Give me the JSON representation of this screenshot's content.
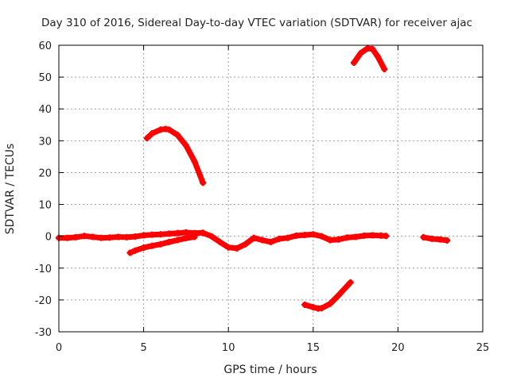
{
  "chart_data": {
    "type": "line",
    "title": "Day 310 of 2016, Sidereal Day-to-day VTEC variation (SDTVAR) for receiver ajac",
    "xlabel": "GPS time / hours",
    "ylabel": "SDTVAR / TECUs",
    "xlim": [
      0,
      25
    ],
    "ylim": [
      -30,
      60
    ],
    "xticks": [
      0,
      5,
      10,
      15,
      20,
      25
    ],
    "yticks": [
      -30,
      -20,
      -10,
      0,
      10,
      20,
      30,
      40,
      50,
      60
    ],
    "grid": true,
    "legend": "none",
    "colors": {
      "series": "#ff0000",
      "grid": "#a0a0a0",
      "axes": "#000000"
    },
    "series": [
      {
        "name": "main-trace",
        "x": [
          0,
          0.5,
          1,
          1.5,
          2,
          2.5,
          3,
          3.5,
          4,
          4.5,
          5,
          5.5,
          6,
          6.5,
          7,
          7.5,
          8,
          8.5,
          9,
          9.5,
          10,
          10.5,
          11,
          11.5,
          12,
          12.5,
          13,
          13.5,
          14,
          14.5,
          15,
          15.5,
          16,
          16.5,
          17,
          17.5,
          18,
          18.5,
          19,
          19.3
        ],
        "y": [
          -0.5,
          -0.5,
          -0.3,
          0.1,
          -0.2,
          -0.5,
          -0.4,
          -0.2,
          -0.3,
          -0.1,
          0.3,
          0.5,
          0.6,
          0.8,
          1.0,
          1.2,
          1.0,
          1.1,
          0,
          -1.8,
          -3.5,
          -3.8,
          -2.5,
          -0.5,
          -1.2,
          -1.8,
          -0.8,
          -0.5,
          0.2,
          0.4,
          0.6,
          0,
          -1.2,
          -1.0,
          -0.4,
          -0.2,
          0.2,
          0.3,
          0.2,
          0.1
        ]
      },
      {
        "name": "lower-branch",
        "x": [
          4.2,
          4.5,
          5,
          5.5,
          6,
          6.5,
          7,
          7.5,
          8
        ],
        "y": [
          -5.2,
          -4.5,
          -3.6,
          -3.0,
          -2.5,
          -1.8,
          -1.2,
          -0.6,
          -0.2
        ]
      },
      {
        "name": "arc-1",
        "x": [
          5.2,
          5.5,
          6,
          6.3,
          6.5,
          7,
          7.5,
          8,
          8.5
        ],
        "y": [
          30.8,
          32.3,
          33.5,
          33.7,
          33.5,
          31.8,
          28.5,
          23.5,
          16.8
        ]
      },
      {
        "name": "arc-2",
        "x": [
          14.5,
          15,
          15.3,
          15.5,
          16,
          16.5,
          17.2
        ],
        "y": [
          -21.5,
          -22.3,
          -22.7,
          -22.6,
          -21.2,
          -18.5,
          -14.5
        ]
      },
      {
        "name": "arc-3",
        "x": [
          17.4,
          17.8,
          18.2,
          18.5,
          18.8,
          19.2
        ],
        "y": [
          54.5,
          57.5,
          59,
          58.8,
          56.5,
          52.5
        ]
      },
      {
        "name": "late-segment",
        "x": [
          21.5,
          22,
          22.5,
          22.9
        ],
        "y": [
          -0.3,
          -0.8,
          -1.0,
          -1.3
        ]
      }
    ]
  }
}
